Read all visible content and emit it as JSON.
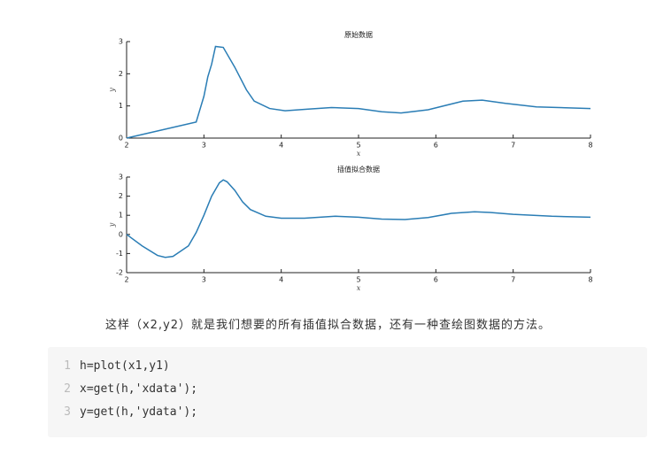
{
  "chart_data": [
    {
      "type": "line",
      "title": "原始数据",
      "xlabel": "x",
      "ylabel": "y",
      "color": "#2a7db5",
      "xlim": [
        2,
        8
      ],
      "ylim": [
        0,
        3
      ],
      "xticks": [
        2,
        3,
        4,
        5,
        6,
        7,
        8
      ],
      "yticks": [
        0,
        1,
        2,
        3
      ],
      "x": [
        2,
        2.9,
        3.0,
        3.05,
        3.1,
        3.15,
        3.25,
        3.4,
        3.55,
        3.65,
        3.85,
        4.05,
        4.35,
        4.65,
        5.0,
        5.3,
        5.55,
        5.9,
        6.35,
        6.6,
        6.9,
        7.3,
        8.0
      ],
      "values": [
        0,
        0.5,
        1.3,
        1.9,
        2.3,
        2.85,
        2.82,
        2.2,
        1.5,
        1.15,
        0.92,
        0.85,
        0.9,
        0.95,
        0.92,
        0.82,
        0.78,
        0.88,
        1.15,
        1.18,
        1.08,
        0.97,
        0.92
      ]
    },
    {
      "type": "line",
      "title": "插值拟合数据",
      "xlabel": "x",
      "ylabel": "y",
      "color": "#2a7db5",
      "xlim": [
        2,
        8
      ],
      "ylim": [
        -2,
        3
      ],
      "xticks": [
        2,
        3,
        4,
        5,
        6,
        7,
        8
      ],
      "yticks": [
        -2,
        -1,
        0,
        1,
        2,
        3
      ],
      "x": [
        2,
        2.2,
        2.4,
        2.5,
        2.6,
        2.8,
        2.9,
        3.0,
        3.1,
        3.2,
        3.25,
        3.3,
        3.4,
        3.5,
        3.6,
        3.8,
        4.0,
        4.3,
        4.7,
        5.0,
        5.3,
        5.6,
        5.9,
        6.2,
        6.5,
        6.7,
        7.0,
        7.5,
        8.0
      ],
      "values": [
        0,
        -0.6,
        -1.1,
        -1.2,
        -1.15,
        -0.6,
        0.1,
        1.0,
        2.0,
        2.7,
        2.85,
        2.75,
        2.3,
        1.7,
        1.3,
        0.95,
        0.85,
        0.85,
        0.95,
        0.9,
        0.8,
        0.78,
        0.88,
        1.1,
        1.18,
        1.15,
        1.05,
        0.95,
        0.9
      ]
    }
  ],
  "paragraph": "这样（x2,y2）就是我们想要的所有插值拟合数据，还有一种查绘图数据的方法。",
  "code": {
    "line_numbers": [
      1,
      2,
      3
    ],
    "lines": [
      "h=plot(x1,y1)",
      "x=get(h,'xdata');",
      "y=get(h,'ydata');"
    ]
  }
}
